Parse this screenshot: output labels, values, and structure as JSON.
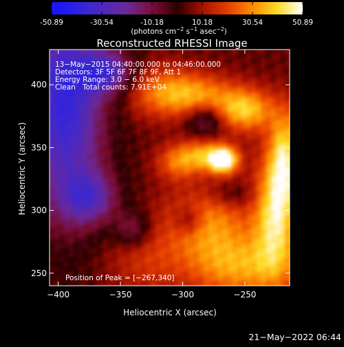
{
  "chart_data": {
    "type": "heatmap",
    "title": "Reconstructed RHESSI Image",
    "colorbar": {
      "ticks": [
        "-50.89",
        "-30.54",
        "-10.18",
        "10.18",
        "30.54",
        "50.89"
      ],
      "tick_values": [
        -50.89,
        -30.54,
        -10.18,
        10.18,
        30.54,
        50.89
      ],
      "range": [
        -50.89,
        50.89
      ]
    },
    "xlabel": "Heliocentric X (arcsec)",
    "ylabel": "Heliocentric Y (arcsec)",
    "xlim": [
      -407,
      -214
    ],
    "ylim": [
      240,
      428
    ],
    "x_ticks": [
      {
        "value": -400,
        "label": "−400"
      },
      {
        "value": -350,
        "label": "−350"
      },
      {
        "value": -300,
        "label": "−300"
      },
      {
        "value": -250,
        "label": "−250"
      }
    ],
    "y_ticks": [
      {
        "value": 250,
        "label": "250"
      },
      {
        "value": 300,
        "label": "300"
      },
      {
        "value": 350,
        "label": "350"
      },
      {
        "value": 400,
        "label": "400"
      }
    ],
    "annotations": {
      "time": "13−May−2015 04:40:00.000 to 04:46:00.000",
      "detectors": "Detectors: 3F 5F 6F 7F 8F 9F, Att 1",
      "energy": "Energy Range: 3.0 − 6.0 keV",
      "clean": "Clean",
      "counts": "Total counts: 7.91E+04",
      "peak": "Position of Peak = [−267,340]"
    },
    "peak": {
      "x": -267,
      "y": 340,
      "value": 50.89
    },
    "sources": [
      {
        "x": -267,
        "y": 340,
        "amp": 50.89,
        "sx": 8,
        "sy": 7
      },
      {
        "x": -283,
        "y": 344,
        "amp": 28,
        "sx": 14,
        "sy": 9
      },
      {
        "x": -250,
        "y": 380,
        "amp": 34,
        "sx": 16,
        "sy": 12
      },
      {
        "x": -290,
        "y": 392,
        "amp": 26,
        "sx": 22,
        "sy": 12
      },
      {
        "x": -320,
        "y": 395,
        "amp": 18,
        "sx": 20,
        "sy": 15
      },
      {
        "x": -305,
        "y": 338,
        "amp": 20,
        "sx": 12,
        "sy": 10
      },
      {
        "x": -225,
        "y": 300,
        "amp": 40,
        "sx": 12,
        "sy": 35
      },
      {
        "x": -218,
        "y": 345,
        "amp": 30,
        "sx": 8,
        "sy": 25
      },
      {
        "x": -280,
        "y": 290,
        "amp": 25,
        "sx": 25,
        "sy": 20
      },
      {
        "x": -255,
        "y": 255,
        "amp": 28,
        "sx": 30,
        "sy": 18
      },
      {
        "x": -330,
        "y": 260,
        "amp": 12,
        "sx": 22,
        "sy": 20
      },
      {
        "x": -395,
        "y": 385,
        "amp": -42,
        "sx": 22,
        "sy": 60
      },
      {
        "x": -360,
        "y": 410,
        "amp": -30,
        "sx": 15,
        "sy": 12
      },
      {
        "x": -375,
        "y": 310,
        "amp": -25,
        "sx": 16,
        "sy": 15
      },
      {
        "x": -340,
        "y": 285,
        "amp": -18,
        "sx": 10,
        "sy": 10
      },
      {
        "x": -295,
        "y": 292,
        "amp": -16,
        "sx": 8,
        "sy": 8
      },
      {
        "x": -282,
        "y": 372,
        "amp": -20,
        "sx": 10,
        "sy": 9
      },
      {
        "x": -260,
        "y": 312,
        "amp": -10,
        "sx": 14,
        "sy": 7
      }
    ],
    "background": 4
  },
  "footer": {
    "timestamp": "21−May−2022 06:44"
  }
}
